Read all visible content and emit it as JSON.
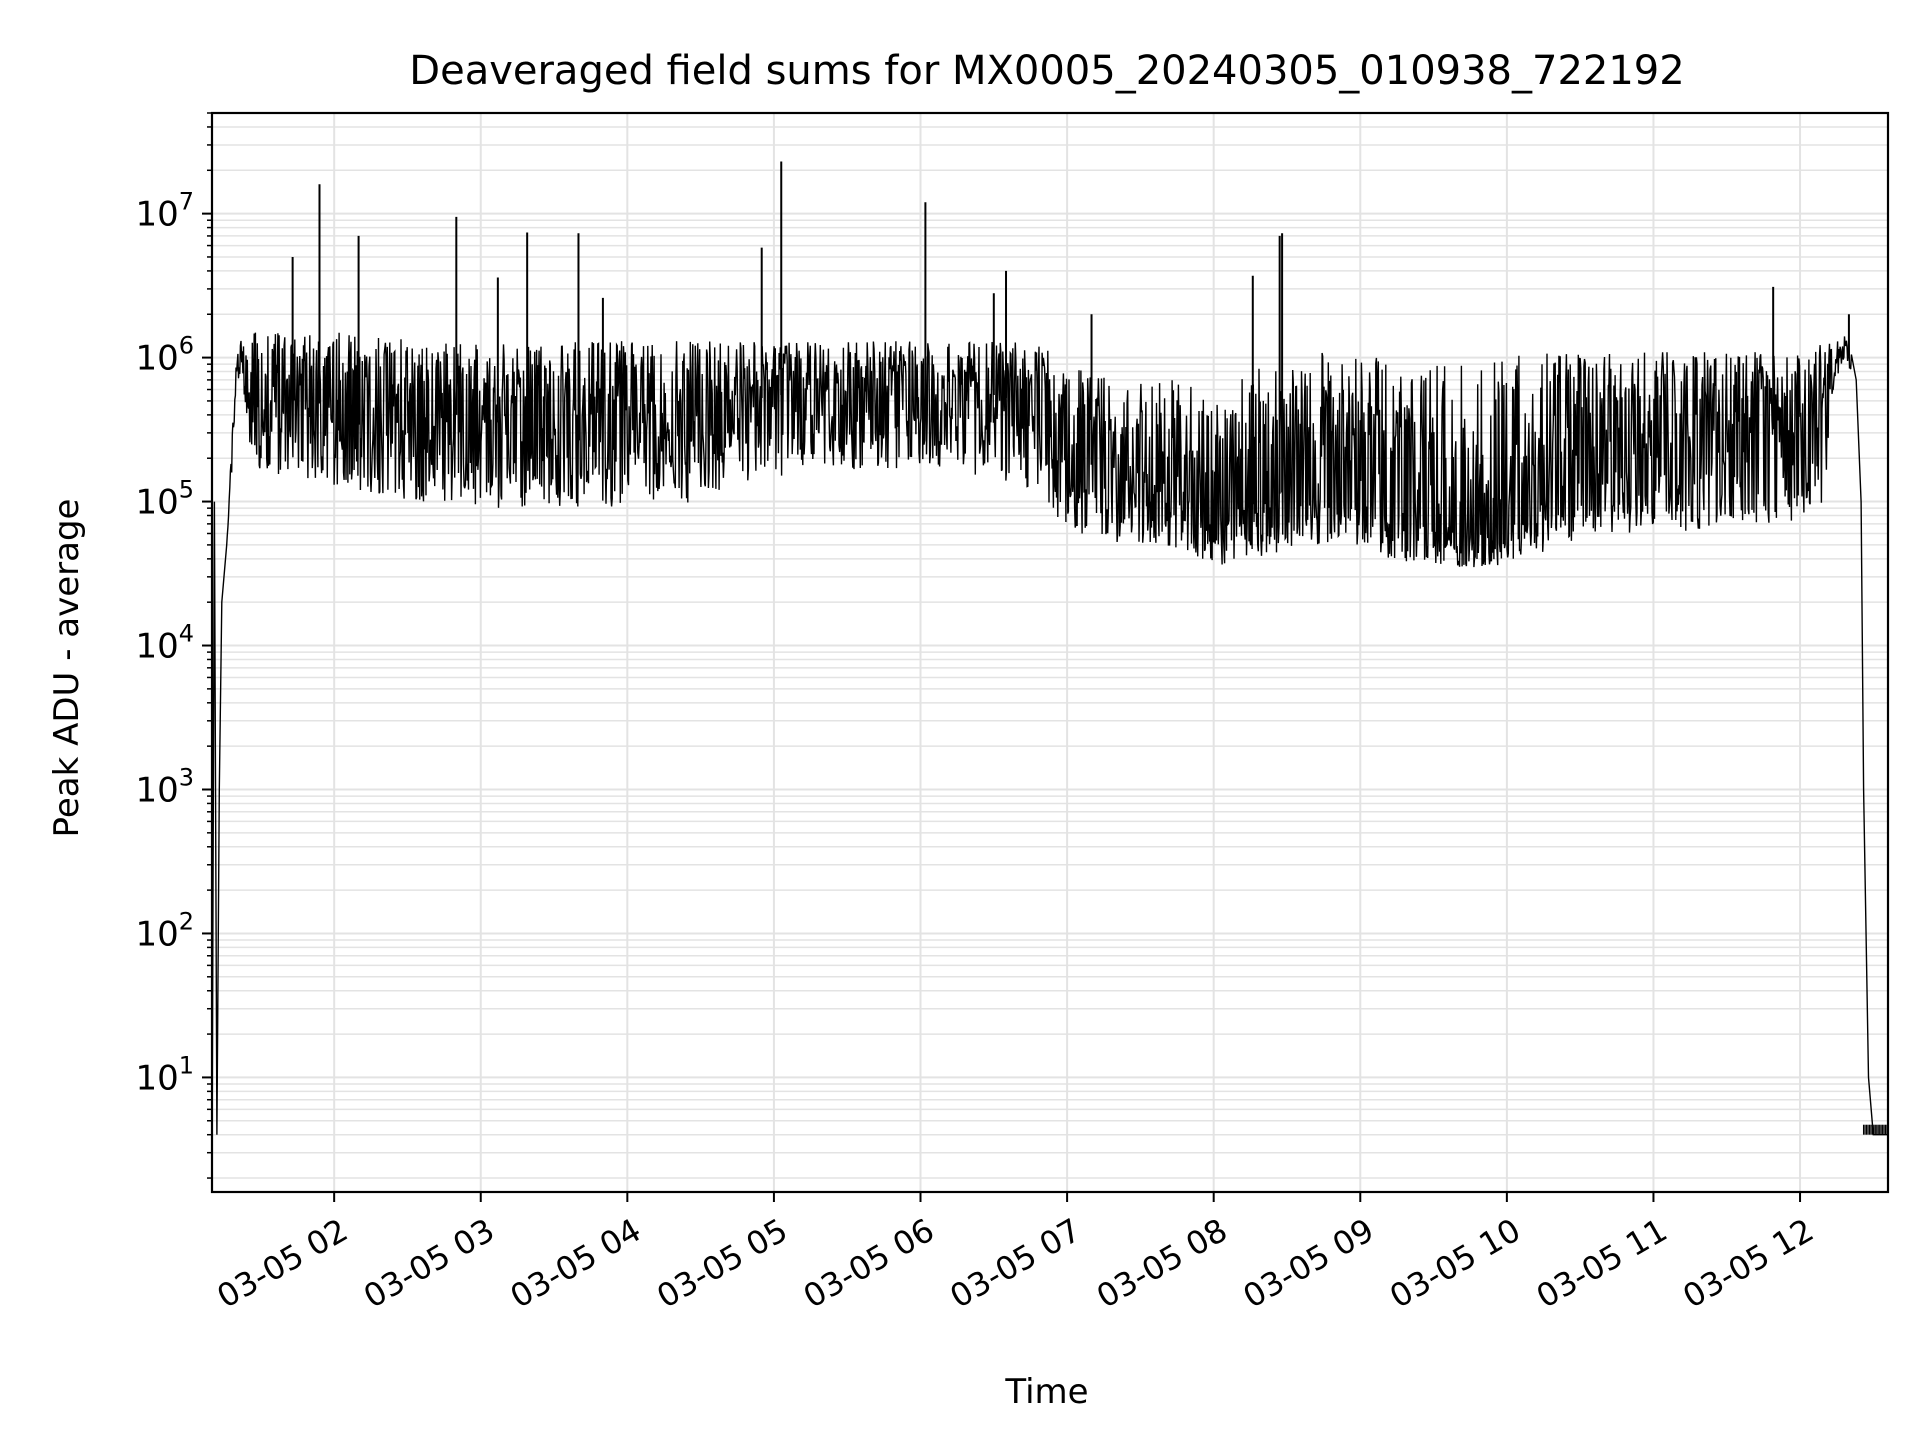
{
  "chart_data": {
    "type": "line",
    "title": "Deaveraged field sums for MX0005_20240305_010938_722192",
    "xlabel": "Time",
    "ylabel": "Peak ADU - average",
    "y_scale": "log",
    "grid": true,
    "legend": "none",
    "xlim": [
      "2024-03-05 01:10",
      "2024-03-05 12:36"
    ],
    "ylim": [
      1.6,
      50000000
    ],
    "x_ticks": [
      "03-05 02",
      "03-05 03",
      "03-05 04",
      "03-05 05",
      "03-05 06",
      "03-05 07",
      "03-05 08",
      "03-05 09",
      "03-05 10",
      "03-05 11",
      "03-05 12"
    ],
    "y_ticks": [
      {
        "base": "10",
        "exp": "1"
      },
      {
        "base": "10",
        "exp": "2"
      },
      {
        "base": "10",
        "exp": "3"
      },
      {
        "base": "10",
        "exp": "4"
      },
      {
        "base": "10",
        "exp": "5"
      },
      {
        "base": "10",
        "exp": "6"
      },
      {
        "base": "10",
        "exp": "7"
      }
    ],
    "series_color": "#000000",
    "series": [
      {
        "x": [
          "01:10",
          "01:11",
          "01:12",
          "01:13",
          "01:14",
          "01:16",
          "01:18",
          "01:20",
          "01:22",
          "01:25",
          "01:28",
          "01:31",
          "01:35",
          "01:40",
          "01:45",
          "01:50",
          "01:55",
          "02:00",
          "02:10",
          "02:20",
          "02:30",
          "02:40",
          "02:50",
          "03:00",
          "03:10",
          "03:20",
          "03:30",
          "03:40",
          "03:50",
          "04:00",
          "04:10",
          "04:20",
          "04:30",
          "04:40",
          "04:50",
          "05:00",
          "05:10",
          "05:20",
          "05:30",
          "05:40",
          "05:50",
          "06:00",
          "06:10",
          "06:20",
          "06:30",
          "06:40",
          "06:50",
          "07:00",
          "07:10",
          "07:20",
          "07:30",
          "07:40",
          "07:50",
          "08:00",
          "08:10",
          "08:20",
          "08:30",
          "08:40",
          "08:50",
          "09:00",
          "09:10",
          "09:20",
          "09:30",
          "09:40",
          "09:50",
          "10:00",
          "10:10",
          "10:20",
          "10:30",
          "10:40",
          "10:50",
          "11:00",
          "11:10",
          "11:20",
          "11:30",
          "11:40",
          "11:50",
          "12:00",
          "12:05",
          "12:10",
          "12:14",
          "12:18",
          "12:21",
          "12:23",
          "12:25",
          "12:26",
          "12:28",
          "12:30",
          "12:33",
          "12:36"
        ],
        "median": [
          2,
          100000,
          4,
          1000,
          20000,
          50000,
          200000,
          800000,
          1000000,
          600000,
          500000,
          450000,
          500000,
          500000,
          500000,
          480000,
          480000,
          460000,
          450000,
          430000,
          420000,
          400000,
          400000,
          380000,
          380000,
          380000,
          370000,
          380000,
          380000,
          380000,
          400000,
          420000,
          400000,
          450000,
          500000,
          550000,
          550000,
          550000,
          580000,
          600000,
          600000,
          600000,
          580000,
          550000,
          550000,
          500000,
          450000,
          200000,
          180000,
          160000,
          150000,
          140000,
          120000,
          80000,
          90000,
          100000,
          120000,
          150000,
          140000,
          120000,
          100000,
          80000,
          70000,
          60000,
          60000,
          70000,
          90000,
          150000,
          200000,
          220000,
          240000,
          250000,
          260000,
          260000,
          280000,
          300000,
          320000,
          350000,
          400000,
          500000,
          900000,
          1100000,
          1000000,
          700000,
          100000,
          1000,
          10,
          4,
          4,
          4
        ],
        "low": [
          2,
          100000,
          4,
          1000,
          20000,
          50000,
          150000,
          600000,
          800000,
          250000,
          180000,
          150000,
          150000,
          150000,
          150000,
          140000,
          140000,
          130000,
          120000,
          110000,
          100000,
          100000,
          100000,
          90000,
          90000,
          90000,
          90000,
          90000,
          90000,
          90000,
          95000,
          100000,
          95000,
          110000,
          130000,
          150000,
          150000,
          150000,
          160000,
          170000,
          170000,
          170000,
          160000,
          150000,
          150000,
          130000,
          110000,
          60000,
          55000,
          50000,
          48000,
          45000,
          40000,
          35000,
          38000,
          42000,
          45000,
          50000,
          48000,
          45000,
          40000,
          38000,
          36000,
          35000,
          35000,
          36000,
          40000,
          50000,
          55000,
          58000,
          60000,
          60000,
          62000,
          62000,
          65000,
          68000,
          70000,
          75000,
          80000,
          100000,
          700000,
          900000,
          800000,
          500000,
          80000,
          1000,
          10,
          4,
          4,
          4
        ],
        "high": [
          2,
          100000,
          4,
          1000,
          20000,
          50000,
          250000,
          1000000,
          1500000,
          1500000,
          1500000,
          1500000,
          1500000,
          1500000,
          1500000,
          1500000,
          1500000,
          1500000,
          1500000,
          1400000,
          1400000,
          1300000,
          1300000,
          1300000,
          1300000,
          1300000,
          1300000,
          1300000,
          1300000,
          1300000,
          1300000,
          1300000,
          1300000,
          1300000,
          1300000,
          1300000,
          1300000,
          1300000,
          1300000,
          1300000,
          1300000,
          1300000,
          1300000,
          1300000,
          1300000,
          1300000,
          1200000,
          900000,
          800000,
          700000,
          700000,
          700000,
          700000,
          600000,
          700000,
          900000,
          1000000,
          1100000,
          1100000,
          1000000,
          1000000,
          900000,
          900000,
          900000,
          900000,
          1000000,
          1100000,
          1100000,
          1100000,
          1100000,
          1100000,
          1100000,
          1100000,
          1100000,
          1100000,
          1100000,
          1100000,
          1100000,
          1100000,
          1300000,
          1300000,
          1500000,
          1300000,
          900000,
          120000,
          1200,
          12,
          4,
          4,
          4
        ]
      }
    ],
    "spikes": [
      {
        "x": "01:54",
        "y": 16000000
      },
      {
        "x": "02:10",
        "y": 7000000
      },
      {
        "x": "01:43",
        "y": 5000000
      },
      {
        "x": "02:50",
        "y": 9500000
      },
      {
        "x": "03:07",
        "y": 3600000
      },
      {
        "x": "03:19",
        "y": 7400000
      },
      {
        "x": "03:40",
        "y": 7300000
      },
      {
        "x": "03:50",
        "y": 2600000
      },
      {
        "x": "04:55",
        "y": 5800000
      },
      {
        "x": "05:03",
        "y": 23000000
      },
      {
        "x": "06:02",
        "y": 12000000
      },
      {
        "x": "06:30",
        "y": 2800000
      },
      {
        "x": "06:35",
        "y": 4000000
      },
      {
        "x": "07:10",
        "y": 2000000
      },
      {
        "x": "08:16",
        "y": 3700000
      },
      {
        "x": "08:27",
        "y": 7000000
      },
      {
        "x": "08:28",
        "y": 7300000
      },
      {
        "x": "11:49",
        "y": 3100000
      },
      {
        "x": "12:20",
        "y": 2000000
      }
    ]
  }
}
